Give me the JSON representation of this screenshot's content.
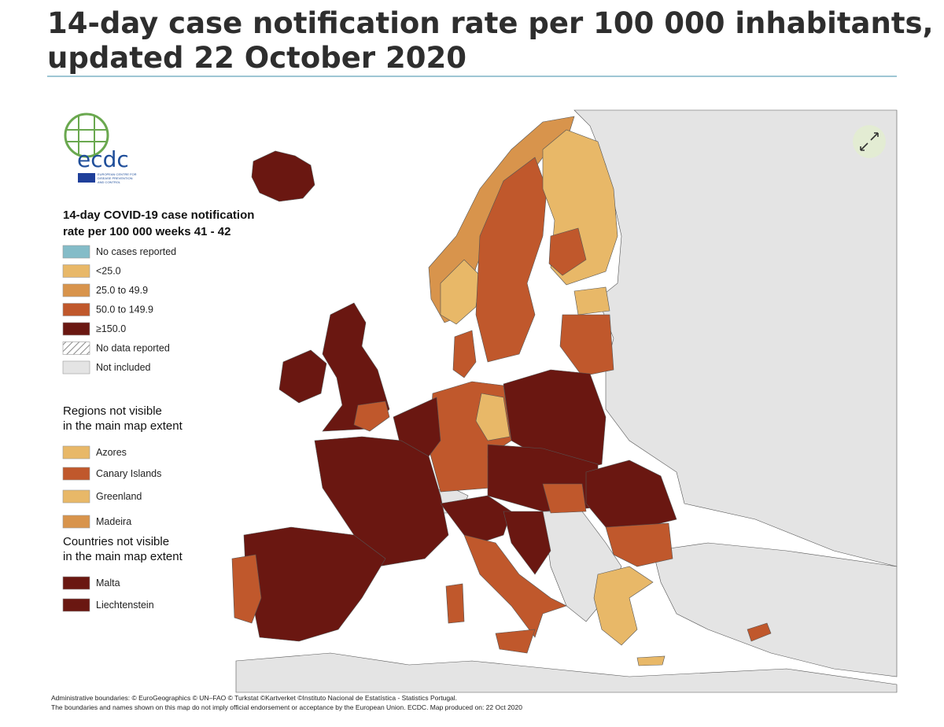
{
  "header": {
    "title": [
      "14-day case notification rate per 100 000 inhabitants,",
      "updated 22 October 2020"
    ]
  },
  "logo": {
    "text": "ecdc",
    "subtext": [
      "EUROPEAN CENTRE FOR",
      "DISEASE PREVENTION",
      "AND CONTROL"
    ]
  },
  "legend": {
    "title": [
      "14-day COVID-19 case notification",
      "rate per 100 000 weeks 41 - 42"
    ],
    "items": [
      {
        "label": "No cases reported",
        "color": "#84bcc8"
      },
      {
        "label": "<25.0",
        "color": "#e8b868"
      },
      {
        "label": "25.0 to 49.9",
        "color": "#d8944c"
      },
      {
        "label": "50.0 to 149.9",
        "color": "#c0582c"
      },
      {
        "label": "≥150.0",
        "color": "#6a1711"
      },
      {
        "label": "No data reported",
        "color": "#8a8a8a"
      },
      {
        "label": "Not included",
        "color": "#e4e4e4"
      }
    ]
  },
  "regions": {
    "title": [
      "Regions not visible",
      "in the main map extent"
    ],
    "items": [
      {
        "label": "Azores",
        "color": "#e8b868"
      },
      {
        "label": "Canary Islands",
        "color": "#c0582c"
      },
      {
        "label": "Greenland",
        "color": "#e8b868"
      },
      {
        "label": "Madeira",
        "color": "#d8944c"
      }
    ]
  },
  "countries": {
    "title": [
      "Countries not visible",
      "in the main map extent"
    ],
    "items": [
      {
        "label": "Malta",
        "color": "#6a1711"
      },
      {
        "label": "Liechtenstein",
        "color": "#6a1711"
      }
    ]
  },
  "footer": [
    "Administrative boundaries: © EuroGeographics © UN–FAO © Turkstat ©Kartverket ©Instituto Nacional de Estatística - Statistics Portugal.",
    "The boundaries and names shown on this map do not imply official endorsement or acceptance by the European Union. ECDC. Map produced on: 22 Oct 2020"
  ]
}
